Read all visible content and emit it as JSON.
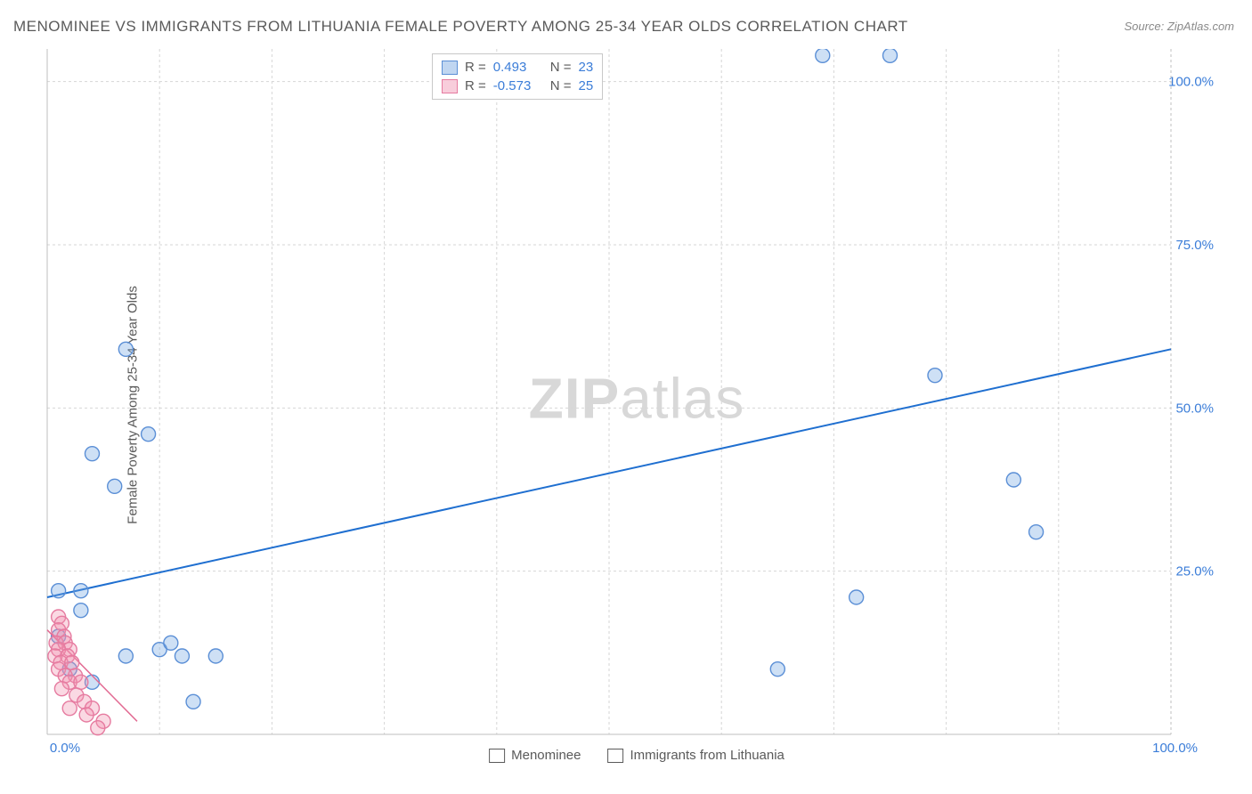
{
  "title": "MENOMINEE VS IMMIGRANTS FROM LITHUANIA FEMALE POVERTY AMONG 25-34 YEAR OLDS CORRELATION CHART",
  "source": "Source: ZipAtlas.com",
  "watermark_a": "ZIP",
  "watermark_b": "atlas",
  "y_axis_label": "Female Poverty Among 25-34 Year Olds",
  "chart": {
    "type": "scatter",
    "xlim": [
      0,
      100
    ],
    "ylim": [
      0,
      105
    ],
    "x_ticks": [
      0,
      100
    ],
    "x_tick_labels": [
      "0.0%",
      "100.0%"
    ],
    "y_ticks": [
      25,
      50,
      75,
      100
    ],
    "y_tick_labels": [
      "25.0%",
      "50.0%",
      "75.0%",
      "100.0%"
    ],
    "grid_color": "#d6d6d6",
    "grid_dash": "3,3",
    "axis_color": "#bfbfbf",
    "background_color": "#ffffff",
    "marker_radius": 8,
    "marker_stroke_width": 1.4,
    "series": [
      {
        "name": "Menominee",
        "color_fill": "rgba(115,165,225,0.35)",
        "color_stroke": "#5b8fd6",
        "R": "0.493",
        "N": "23",
        "regression": {
          "x1": 0,
          "y1": 21,
          "x2": 100,
          "y2": 59,
          "color": "#1f6fd0",
          "width": 2
        },
        "points": [
          [
            69,
            104
          ],
          [
            75,
            104
          ],
          [
            7,
            59
          ],
          [
            79,
            55
          ],
          [
            9,
            46
          ],
          [
            4,
            43
          ],
          [
            6,
            38
          ],
          [
            86,
            39
          ],
          [
            88,
            31
          ],
          [
            72,
            21
          ],
          [
            1,
            22
          ],
          [
            3,
            22
          ],
          [
            3,
            19
          ],
          [
            10,
            13
          ],
          [
            11,
            14
          ],
          [
            15,
            12
          ],
          [
            12,
            12
          ],
          [
            7,
            12
          ],
          [
            65,
            10
          ],
          [
            13,
            5
          ],
          [
            1,
            15
          ],
          [
            2,
            10
          ],
          [
            4,
            8
          ]
        ]
      },
      {
        "name": "Immigrants from Lithuania",
        "color_fill": "rgba(240,145,175,0.35)",
        "color_stroke": "#e67ba0",
        "R": "-0.573",
        "N": "25",
        "regression": {
          "x1": 0,
          "y1": 16,
          "x2": 8,
          "y2": 2,
          "color": "#e26b93",
          "width": 1.5
        },
        "points": [
          [
            1,
            18
          ],
          [
            1.3,
            17
          ],
          [
            1,
            16
          ],
          [
            1.5,
            15
          ],
          [
            0.8,
            14
          ],
          [
            1.6,
            14
          ],
          [
            2,
            13
          ],
          [
            1,
            13
          ],
          [
            0.7,
            12
          ],
          [
            1.8,
            12
          ],
          [
            1.2,
            11
          ],
          [
            2.2,
            11
          ],
          [
            1,
            10
          ],
          [
            2.5,
            9
          ],
          [
            1.6,
            9
          ],
          [
            2,
            8
          ],
          [
            3,
            8
          ],
          [
            1.3,
            7
          ],
          [
            2.6,
            6
          ],
          [
            3.3,
            5
          ],
          [
            2,
            4
          ],
          [
            4,
            4
          ],
          [
            3.5,
            3
          ],
          [
            5,
            2
          ],
          [
            4.5,
            1
          ]
        ]
      }
    ]
  },
  "stats_legend": {
    "r_label": "R =",
    "n_label": "N ="
  },
  "bottom_legend": {
    "items": [
      "Menominee",
      "Immigrants from Lithuania"
    ]
  }
}
